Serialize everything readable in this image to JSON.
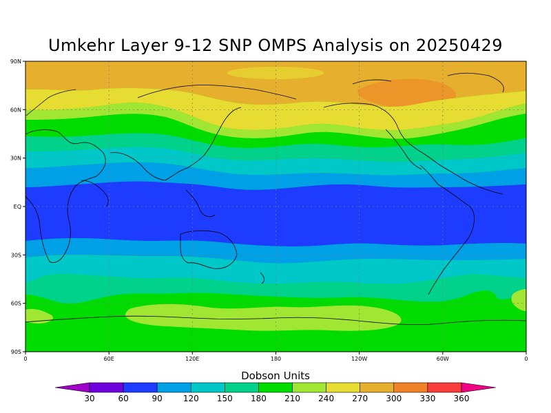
{
  "title": "Umkehr Layer 9-12 SNP OMPS Analysis on 20250429",
  "lat_labels": [
    "90N",
    "60N",
    "30N",
    "EQ",
    "30S",
    "60S",
    "90S"
  ],
  "lon_labels": [
    "0",
    "60E",
    "120E",
    "180",
    "120W",
    "60W",
    "0"
  ],
  "colorbar": {
    "title": "Dobson Units",
    "labels": [
      "30",
      "60",
      "90",
      "120",
      "150",
      "180",
      "210",
      "240",
      "270",
      "300",
      "330",
      "360"
    ],
    "colors": [
      "#a000c8",
      "#6e00dc",
      "#1e3cff",
      "#00a0e6",
      "#00c8c8",
      "#00d28c",
      "#00dc00",
      "#a0e632",
      "#e6dc32",
      "#e6af2d",
      "#f08228",
      "#fa3c3c",
      "#f00082"
    ]
  },
  "chart_data": {
    "type": "heatmap",
    "title": "Umkehr Layer 9-12 SNP OMPS Analysis on 20250429",
    "xlabel": "",
    "ylabel": "",
    "x_range": [
      "0",
      "0"
    ],
    "y_range": [
      "90S",
      "90N"
    ],
    "units": "Dobson Units",
    "levels": [
      30,
      60,
      90,
      120,
      150,
      180,
      210,
      240,
      270,
      300,
      330,
      360
    ],
    "grid": true
  }
}
